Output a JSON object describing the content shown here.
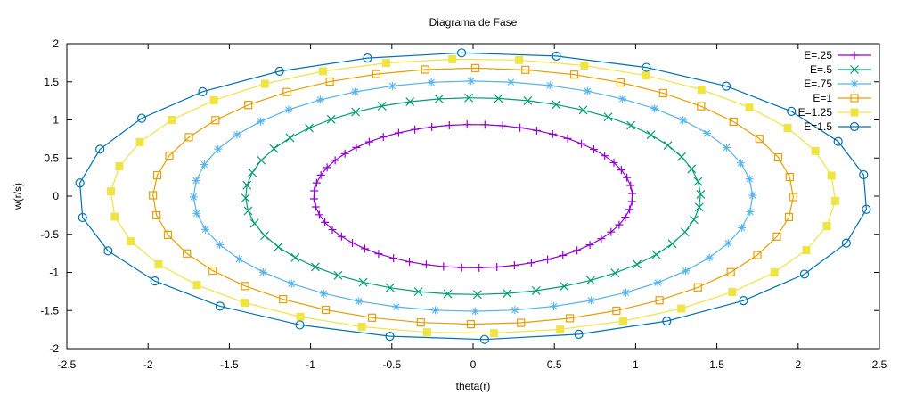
{
  "chart_data": {
    "type": "line",
    "title": "Diagrama de Fase",
    "xlabel": "theta(r)",
    "ylabel": "w(r/s)",
    "xlim": [
      -2.5,
      2.5
    ],
    "ylim": [
      -2,
      2
    ],
    "xticks": [
      "-2.5",
      "-2",
      "-1.5",
      "-1",
      "-0.5",
      "0",
      "0.5",
      "1",
      "1.5",
      "2",
      "2.5"
    ],
    "yticks": [
      "-2",
      "-1.5",
      "-1",
      "-0.5",
      "0",
      "0.5",
      "1",
      "1.5",
      "2"
    ],
    "grid": false,
    "legend_position": "top-right",
    "series": [
      {
        "name": "E=.25",
        "color": "#9400d3",
        "marker": "plus",
        "semi_axis_theta": 0.98,
        "semi_axis_w": 0.94
      },
      {
        "name": "E=.5",
        "color": "#009e73",
        "marker": "cross",
        "semi_axis_theta": 1.4,
        "semi_axis_w": 1.29
      },
      {
        "name": "E=.75",
        "color": "#56b4e9",
        "marker": "star",
        "semi_axis_theta": 1.72,
        "semi_axis_w": 1.51
      },
      {
        "name": "E=1",
        "color": "#e69f00",
        "marker": "open-square",
        "semi_axis_theta": 1.97,
        "semi_axis_w": 1.68
      },
      {
        "name": "E=1.25",
        "color": "#f0e442",
        "marker": "filled-square",
        "semi_axis_theta": 2.23,
        "semi_axis_w": 1.8
      },
      {
        "name": "E=1.5",
        "color": "#0072b2",
        "marker": "open-circle",
        "semi_axis_theta": 2.43,
        "semi_axis_w": 1.88
      }
    ]
  }
}
